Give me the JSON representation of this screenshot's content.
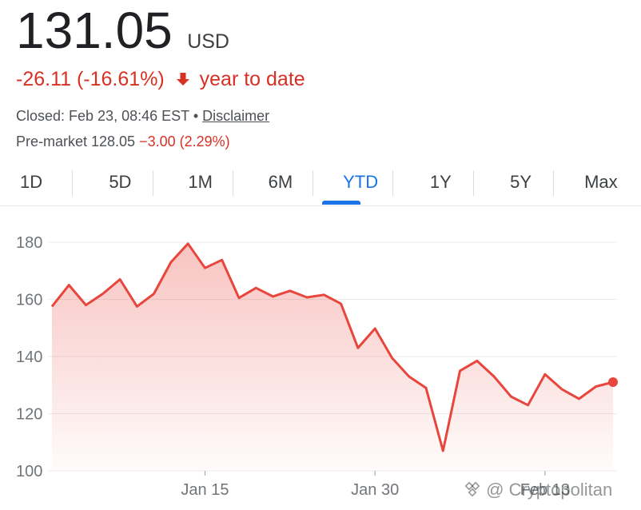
{
  "quote": {
    "price": "131.05",
    "currency": "USD",
    "change": "-26.11 (-16.61%)",
    "change_period": "year to date",
    "closed_prefix": "Closed: Feb 23, 08:46 EST",
    "separator": "•",
    "disclaimer": "Disclaimer",
    "premarket_label": "Pre-market 128.05",
    "premarket_change": "−3.00 (2.29%)"
  },
  "tabs": [
    {
      "label": "1D",
      "active": false
    },
    {
      "label": "5D",
      "active": false
    },
    {
      "label": "1M",
      "active": false
    },
    {
      "label": "6M",
      "active": false
    },
    {
      "label": "YTD",
      "active": true
    },
    {
      "label": "1Y",
      "active": false
    },
    {
      "label": "5Y",
      "active": false
    },
    {
      "label": "Max",
      "active": false
    }
  ],
  "icons": {
    "down_arrow": "arrow-down-icon",
    "watermark_logo": "watermark-logo-icon"
  },
  "colors": {
    "negative": "#d93025",
    "accent": "#1a73e8",
    "line": "#e8453c"
  },
  "watermark": {
    "text": "@ Cryptopolitan"
  },
  "chart_data": {
    "type": "area",
    "title": "",
    "xlabel": "",
    "ylabel": "",
    "ylim": [
      100,
      180
    ],
    "y_ticks": [
      180,
      160,
      140,
      120,
      100
    ],
    "x_tick_labels": [
      "Jan 15",
      "Jan 30",
      "Feb 13"
    ],
    "x_tick_index": [
      9,
      19,
      29
    ],
    "grid": true,
    "legend": "none",
    "series": [
      {
        "values": [
          157.5,
          165,
          158,
          162,
          167,
          157.5,
          162,
          173,
          179.5,
          171,
          173.8,
          160.5,
          164,
          161,
          163,
          160.7,
          161.6,
          158.5,
          143,
          149.8,
          139.5,
          133,
          129,
          107,
          135,
          138.5,
          133,
          126,
          123,
          133.8,
          128.5,
          125.2,
          129.5,
          131.05
        ]
      }
    ],
    "last_point_marker": true
  }
}
